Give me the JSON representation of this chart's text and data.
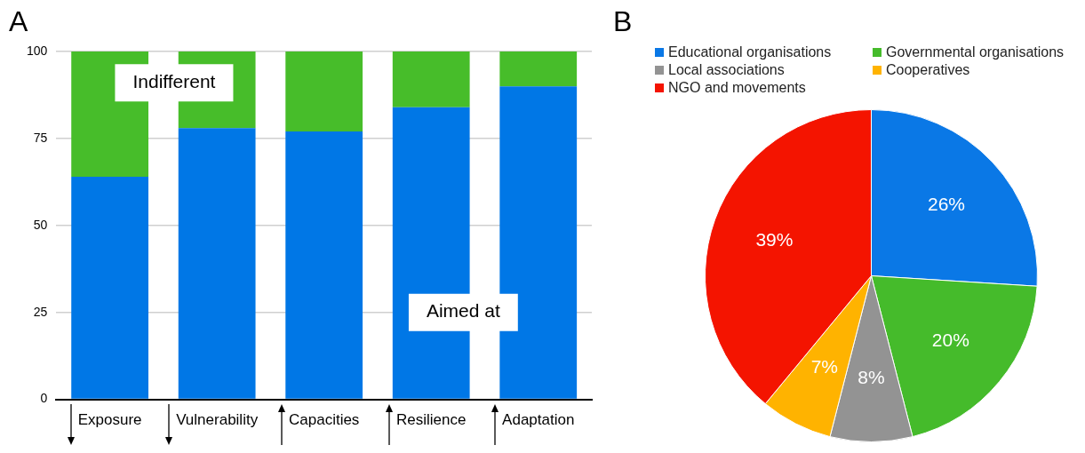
{
  "chart_data": [
    {
      "type": "bar",
      "title": "A",
      "categories": [
        "Exposure",
        "Vulnerability",
        "Capacities",
        "Resilience",
        "Adaptation"
      ],
      "stacked": true,
      "ylim": [
        0,
        100
      ],
      "yticks": [
        0,
        25,
        50,
        75,
        100
      ],
      "grid": "y",
      "legend": false,
      "series": [
        {
          "name": "Aimed at",
          "color": "#0077e6",
          "values": [
            64,
            78,
            77,
            84,
            90
          ]
        },
        {
          "name": "Indifferent",
          "color": "#47bd2a",
          "values": [
            36,
            22,
            23,
            16,
            10
          ]
        }
      ]
    },
    {
      "type": "pie",
      "title": "B",
      "categories": [
        "Educational organisations",
        "Governmental organisations",
        "Local associations",
        "Cooperatives",
        "NGO and movements"
      ],
      "values": [
        26,
        20,
        8,
        7,
        39
      ],
      "colors": [
        "#0a78e6",
        "#45bb2b",
        "#939393",
        "#ffb300",
        "#f41400"
      ],
      "value_labels": [
        "26%",
        "20%",
        "8%",
        "7%",
        "39%"
      ],
      "legend": "top"
    }
  ]
}
